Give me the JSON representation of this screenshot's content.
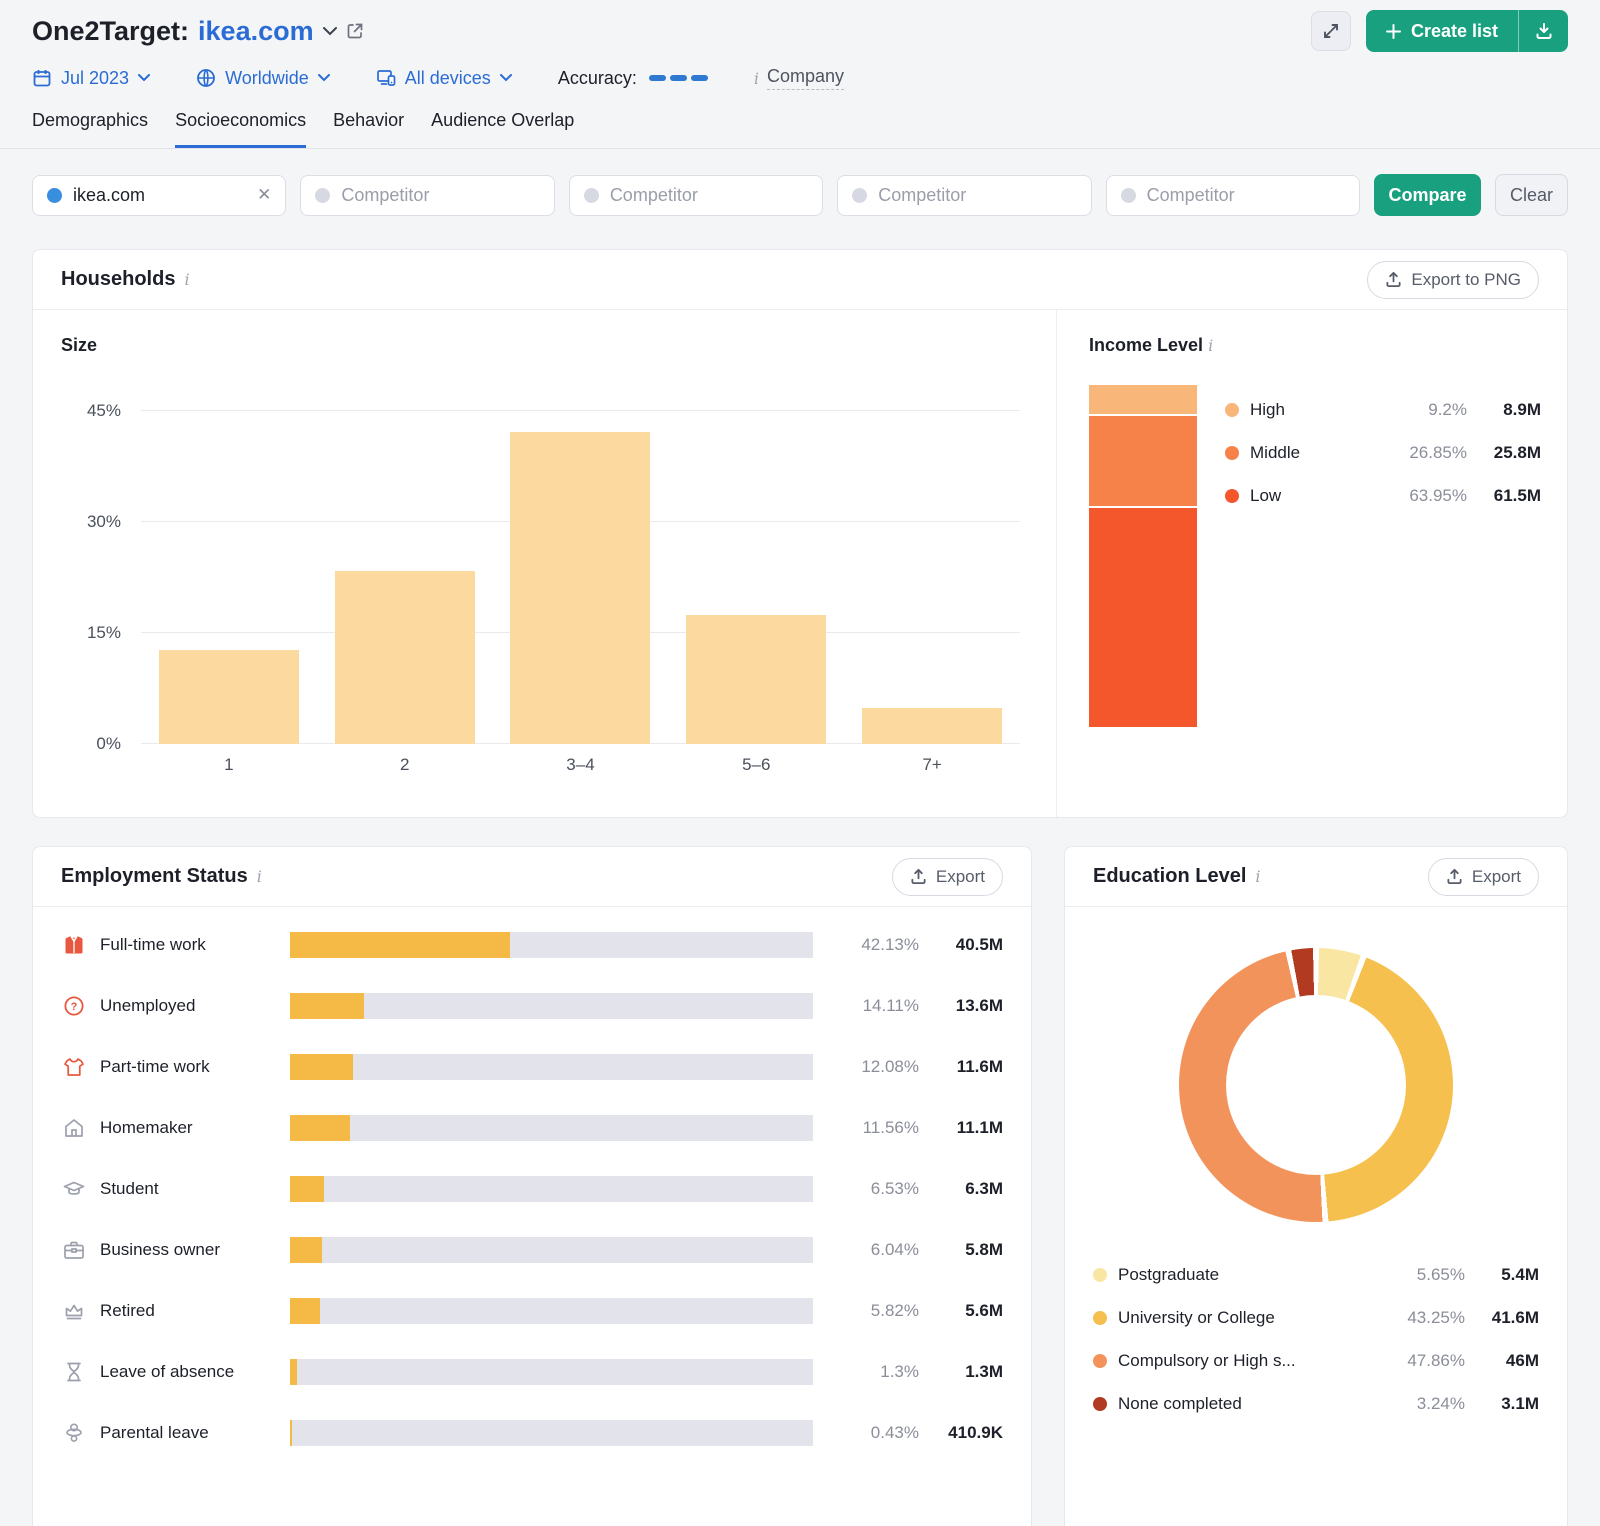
{
  "header": {
    "title_prefix": "One2Target:",
    "domain": "ikea.com",
    "create_list_label": "Create list",
    "filters": {
      "date": "Jul 2023",
      "region": "Worldwide",
      "devices": "All devices",
      "accuracy_label": "Accuracy:",
      "company_label": "Company"
    }
  },
  "tabs": [
    {
      "label": "Demographics",
      "active": false
    },
    {
      "label": "Socioeconomics",
      "active": true
    },
    {
      "label": "Behavior",
      "active": false
    },
    {
      "label": "Audience Overlap",
      "active": false
    }
  ],
  "compare": {
    "selected_domain": "ikea.com",
    "competitor_placeholder": "Competitor",
    "compare_label": "Compare",
    "clear_label": "Clear"
  },
  "households": {
    "title": "Households",
    "export_label": "Export to PNG",
    "size": {
      "label": "Size",
      "type": "bar",
      "categories": [
        "1",
        "2",
        "3–4",
        "5–6",
        "7+"
      ],
      "values": [
        12.7,
        23.4,
        42.1,
        17.4,
        4.9
      ],
      "y_ticks": [
        "45%",
        "30%",
        "15%",
        "0%"
      ],
      "ymax": 45,
      "grid": true,
      "bar_color": "#fbd99f"
    },
    "income": {
      "title": "Income Level",
      "type": "stacked-bar",
      "segments": [
        {
          "label": "High",
          "pct": "9.2%",
          "pct_num": 9.2,
          "value": "8.9M",
          "color": "#f9b679"
        },
        {
          "label": "Middle",
          "pct": "26.85%",
          "pct_num": 26.85,
          "value": "25.8M",
          "color": "#f68149"
        },
        {
          "label": "Low",
          "pct": "63.95%",
          "pct_num": 63.95,
          "value": "61.5M",
          "color": "#f4572c"
        }
      ]
    }
  },
  "employment": {
    "title": "Employment Status",
    "export_label": "Export",
    "type": "hbar",
    "bar_color": "#f5ba45",
    "rows": [
      {
        "label": "Full-time work",
        "pct": "42.13%",
        "pct_num": 42.13,
        "value": "40.5M",
        "icon": "full-time-work-icon"
      },
      {
        "label": "Unemployed",
        "pct": "14.11%",
        "pct_num": 14.11,
        "value": "13.6M",
        "icon": "unemployed-icon"
      },
      {
        "label": "Part-time work",
        "pct": "12.08%",
        "pct_num": 12.08,
        "value": "11.6M",
        "icon": "part-time-work-icon"
      },
      {
        "label": "Homemaker",
        "pct": "11.56%",
        "pct_num": 11.56,
        "value": "11.1M",
        "icon": "homemaker-icon"
      },
      {
        "label": "Student",
        "pct": "6.53%",
        "pct_num": 6.53,
        "value": "6.3M",
        "icon": "student-icon"
      },
      {
        "label": "Business owner",
        "pct": "6.04%",
        "pct_num": 6.04,
        "value": "5.8M",
        "icon": "business-owner-icon"
      },
      {
        "label": "Retired",
        "pct": "5.82%",
        "pct_num": 5.82,
        "value": "5.6M",
        "icon": "retired-icon"
      },
      {
        "label": "Leave of absence",
        "pct": "1.3%",
        "pct_num": 1.3,
        "value": "1.3M",
        "icon": "leave-of-absence-icon"
      },
      {
        "label": "Parental leave",
        "pct": "0.43%",
        "pct_num": 0.43,
        "value": "410.9K",
        "icon": "parental-leave-icon"
      }
    ]
  },
  "education": {
    "title": "Education Level",
    "export_label": "Export",
    "type": "donut",
    "segments": [
      {
        "label": "Postgraduate",
        "pct": "5.65%",
        "pct_num": 5.65,
        "value": "5.4M",
        "color": "#f9e6a3"
      },
      {
        "label": "University or College",
        "pct": "43.25%",
        "pct_num": 43.25,
        "value": "41.6M",
        "color": "#f5c04e"
      },
      {
        "label": "Compulsory or High s...",
        "pct": "47.86%",
        "pct_num": 47.86,
        "value": "46M",
        "color": "#f3935c"
      },
      {
        "label": "None completed",
        "pct": "3.24%",
        "pct_num": 3.24,
        "value": "3.1M",
        "color": "#b13a20"
      }
    ]
  }
}
